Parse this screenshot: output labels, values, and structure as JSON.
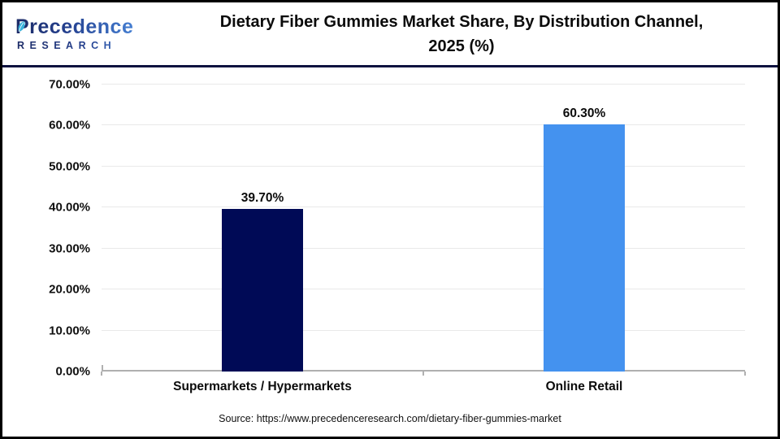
{
  "header": {
    "logo": {
      "line1": "Precedence",
      "line2": "RESEARCH"
    },
    "title": "Dietary Fiber Gummies Market Share, By Distribution Channel, 2025 (%)"
  },
  "chart_data": {
    "type": "bar",
    "title": "Dietary Fiber Gummies Market Share, By Distribution Channel, 2025 (%)",
    "categories": [
      "Supermarkets / Hypermarkets",
      "Online Retail"
    ],
    "values": [
      39.7,
      60.3
    ],
    "value_labels": [
      "39.70%",
      "60.30%"
    ],
    "bar_colors": [
      "#000a56",
      "#4492ef"
    ],
    "xlabel": "",
    "ylabel": "",
    "ylim": [
      0,
      70
    ],
    "ytick_step": 10,
    "ytick_labels": [
      "0.00%",
      "10.00%",
      "20.00%",
      "30.00%",
      "40.00%",
      "50.00%",
      "60.00%",
      "70.00%"
    ],
    "grid": true,
    "legend": "none"
  },
  "footer": {
    "source": "Source: https://www.precedenceresearch.com/dietary-fiber-gummies-market"
  },
  "colors": {
    "frame_border": "#000000",
    "header_divider": "#0d123f",
    "gridline": "#e9e9e9",
    "axis_baseline": "#b0b0b0",
    "navy_bar": "#000a56",
    "blue_bar": "#4492ef",
    "logo_navy": "#1c2b66",
    "logo_blue": "#4b8ade",
    "leaf": "#38b2da",
    "text": "#0b0b0b"
  }
}
